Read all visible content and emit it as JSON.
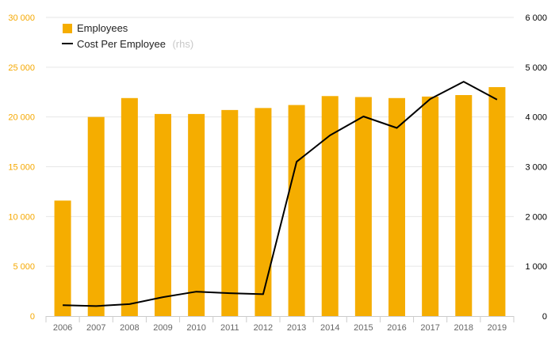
{
  "chart_data": {
    "type": "bar",
    "categories": [
      "2006",
      "2007",
      "2008",
      "2009",
      "2010",
      "2011",
      "2012",
      "2013",
      "2014",
      "2015",
      "2016",
      "2017",
      "2018",
      "2019"
    ],
    "series": [
      {
        "name": "Employees",
        "type": "bar",
        "axis": "left",
        "color": "#f5ad00",
        "values": [
          11600,
          20000,
          21900,
          20300,
          20300,
          20700,
          20900,
          21200,
          22100,
          22000,
          21900,
          22050,
          22200,
          23000
        ]
      },
      {
        "name": "Cost Per Employee",
        "name_suffix": "(rhs)",
        "type": "line",
        "axis": "right",
        "color": "#000000",
        "values": [
          220,
          200,
          240,
          380,
          490,
          460,
          440,
          3100,
          3630,
          4010,
          3780,
          4360,
          4710,
          4350
        ]
      }
    ],
    "y_left": {
      "range": [
        0,
        30000
      ],
      "ticks": [
        0,
        5000,
        10000,
        15000,
        20000,
        25000,
        30000
      ],
      "tick_labels": [
        "0",
        "5 000",
        "10 000",
        "15 000",
        "20 000",
        "25 000",
        "30 000"
      ],
      "color": "#f5a800"
    },
    "y_right": {
      "range": [
        0,
        6000
      ],
      "ticks": [
        0,
        1000,
        2000,
        3000,
        4000,
        5000,
        6000
      ],
      "tick_labels": [
        "0",
        "1 000",
        "2 000",
        "3 000",
        "4 000",
        "5 000",
        "6 000"
      ],
      "color": "#000000"
    },
    "grid": true,
    "legend_position": "top-left"
  }
}
